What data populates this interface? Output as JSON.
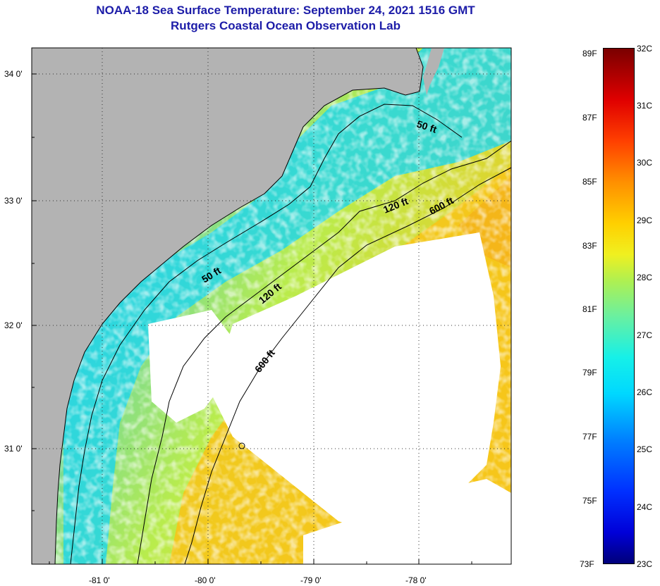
{
  "header": {
    "title": "NOAA-18 Sea Surface Temperature:  September 24, 2021 1516 GMT",
    "subtitle": "Rutgers Coastal Ocean Observation Lab"
  },
  "map": {
    "lat_labels": [
      "34 0'",
      "33 0'",
      "32 0'",
      "31 0'"
    ],
    "lon_labels": [
      "-81 0'",
      "-80 0'",
      "-79 0'",
      "-78 0'"
    ],
    "contour_labels": [
      "50 ft",
      "120 ft",
      "600 ft",
      "50 ft",
      "120 ft",
      "600 ft"
    ],
    "colors": {
      "land": "#b3b3b3",
      "cloud": "#ffffff",
      "coast": "#000000"
    }
  },
  "colorbar": {
    "fahrenheit": [
      "89F",
      "87F",
      "85F",
      "83F",
      "81F",
      "79F",
      "77F",
      "75F",
      "73F"
    ],
    "celsius": [
      "32C",
      "31C",
      "30C",
      "29C",
      "28C",
      "27C",
      "26C",
      "25C",
      "24C",
      "23C"
    ]
  }
}
